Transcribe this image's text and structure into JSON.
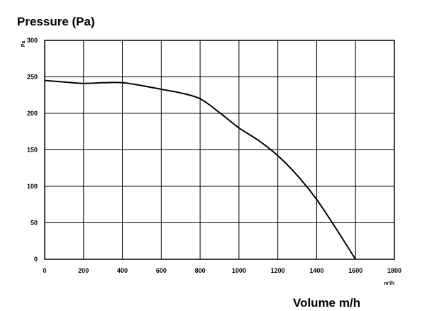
{
  "chart_data": {
    "type": "line",
    "title": "Pressure (Pa)",
    "xlabel": "Volume m/h",
    "x_unit": "m³/h",
    "y_unit": "Pa",
    "xlim": [
      0,
      1800
    ],
    "ylim": [
      0,
      300
    ],
    "xticks": [
      0,
      200,
      400,
      600,
      800,
      1000,
      1200,
      1400,
      1600,
      1800
    ],
    "yticks": [
      0,
      50,
      100,
      150,
      200,
      250,
      300
    ],
    "grid": true,
    "legend": "none",
    "series": [
      {
        "color": "#000000",
        "x": [
          0,
          100,
          200,
          300,
          400,
          500,
          600,
          700,
          800,
          900,
          1000,
          1100,
          1200,
          1300,
          1400,
          1500,
          1600
        ],
        "y": [
          245,
          243,
          241,
          242,
          242,
          238,
          233,
          228,
          220,
          201,
          180,
          163,
          142,
          115,
          82,
          42,
          0
        ]
      }
    ]
  }
}
